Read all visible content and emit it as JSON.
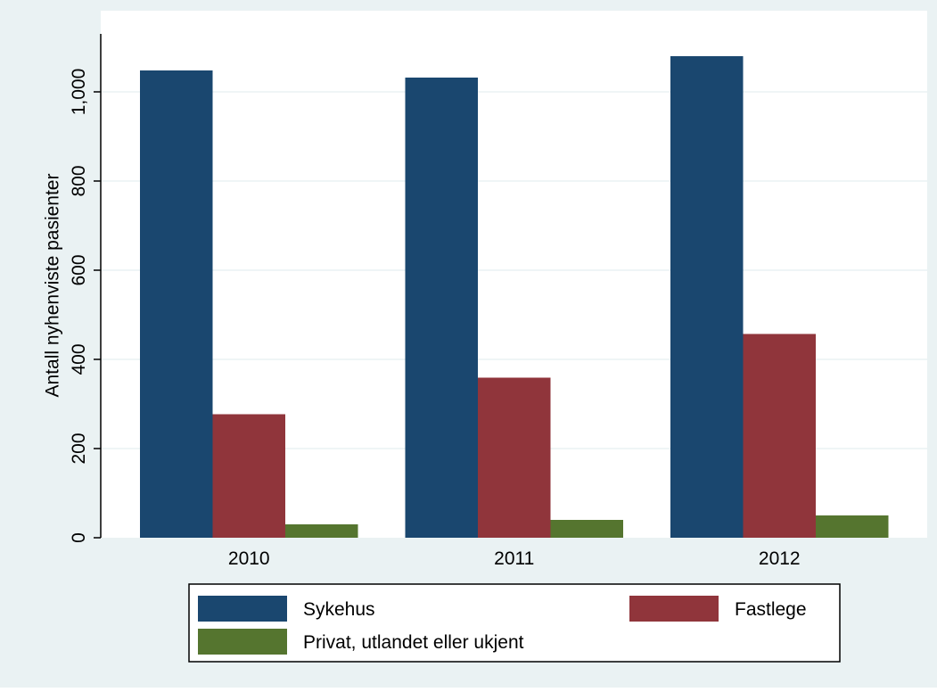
{
  "chart_data": {
    "type": "bar",
    "y_label": "Antall nyhenviste pasienter",
    "categories": [
      "2010",
      "2011",
      "2012"
    ],
    "series": [
      {
        "name": "Sykehus",
        "color": "#1a476f",
        "values": [
          1048,
          1032,
          1080
        ]
      },
      {
        "name": "Fastlege",
        "color": "#90353b",
        "values": [
          277,
          359,
          457
        ]
      },
      {
        "name": "Privat, utlandet eller ukjent",
        "color": "#55752f",
        "values": [
          30,
          40,
          50
        ]
      }
    ],
    "ylim": [
      0,
      1130
    ],
    "yticks": [
      0,
      200,
      400,
      600,
      800,
      {
        "value": 1000,
        "label": "1,000"
      }
    ],
    "grid": true
  }
}
